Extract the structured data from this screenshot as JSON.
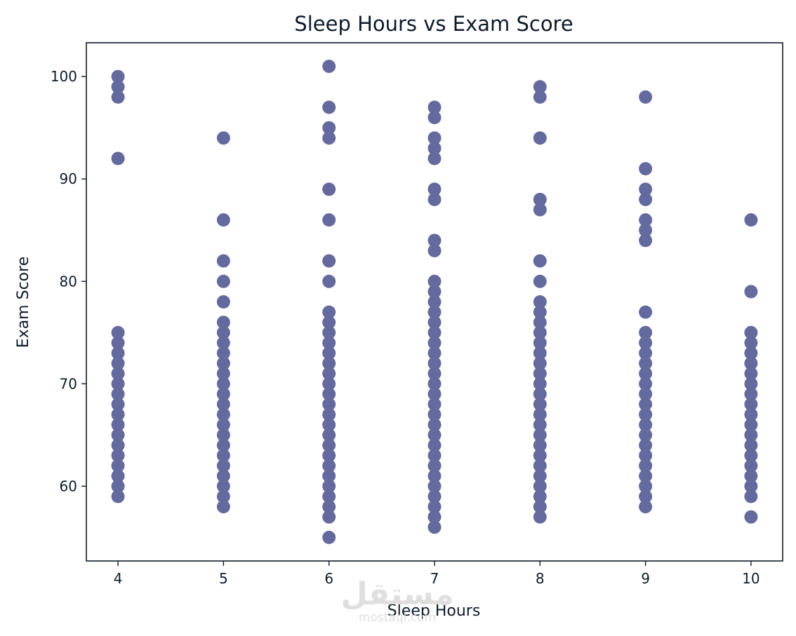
{
  "chart_data": {
    "type": "scatter",
    "title": "Sleep Hours vs Exam Score",
    "xlabel": "Sleep Hours",
    "ylabel": "Exam Score",
    "xlim": [
      3.7,
      10.3
    ],
    "ylim": [
      52.7,
      103.3
    ],
    "xticks": [
      4,
      5,
      6,
      7,
      8,
      9,
      10
    ],
    "yticks": [
      60,
      70,
      80,
      90,
      100
    ],
    "grid": false,
    "marker_color": "#656a9e",
    "axis_color": "#0d1b2a",
    "series": [
      {
        "points": [
          [
            4,
            100
          ],
          [
            4,
            99
          ],
          [
            4,
            98
          ],
          [
            4,
            92
          ],
          [
            4,
            75
          ],
          [
            4,
            74
          ],
          [
            4,
            73
          ],
          [
            4,
            72
          ],
          [
            4,
            71
          ],
          [
            4,
            70
          ],
          [
            4,
            69
          ],
          [
            4,
            68
          ],
          [
            4,
            67
          ],
          [
            4,
            66
          ],
          [
            4,
            65
          ],
          [
            4,
            64
          ],
          [
            4,
            63
          ],
          [
            4,
            62
          ],
          [
            4,
            61
          ],
          [
            4,
            60
          ],
          [
            4,
            59
          ],
          [
            5,
            94
          ],
          [
            5,
            86
          ],
          [
            5,
            82
          ],
          [
            5,
            80
          ],
          [
            5,
            78
          ],
          [
            5,
            76
          ],
          [
            5,
            75
          ],
          [
            5,
            74
          ],
          [
            5,
            73
          ],
          [
            5,
            72
          ],
          [
            5,
            71
          ],
          [
            5,
            70
          ],
          [
            5,
            69
          ],
          [
            5,
            68
          ],
          [
            5,
            67
          ],
          [
            5,
            66
          ],
          [
            5,
            65
          ],
          [
            5,
            64
          ],
          [
            5,
            63
          ],
          [
            5,
            62
          ],
          [
            5,
            61
          ],
          [
            5,
            60
          ],
          [
            5,
            59
          ],
          [
            5,
            58
          ],
          [
            6,
            101
          ],
          [
            6,
            97
          ],
          [
            6,
            95
          ],
          [
            6,
            94
          ],
          [
            6,
            89
          ],
          [
            6,
            86
          ],
          [
            6,
            82
          ],
          [
            6,
            80
          ],
          [
            6,
            77
          ],
          [
            6,
            76
          ],
          [
            6,
            75
          ],
          [
            6,
            74
          ],
          [
            6,
            73
          ],
          [
            6,
            72
          ],
          [
            6,
            71
          ],
          [
            6,
            70
          ],
          [
            6,
            69
          ],
          [
            6,
            68
          ],
          [
            6,
            67
          ],
          [
            6,
            66
          ],
          [
            6,
            65
          ],
          [
            6,
            64
          ],
          [
            6,
            63
          ],
          [
            6,
            62
          ],
          [
            6,
            61
          ],
          [
            6,
            60
          ],
          [
            6,
            59
          ],
          [
            6,
            58
          ],
          [
            6,
            57
          ],
          [
            6,
            55
          ],
          [
            7,
            97
          ],
          [
            7,
            96
          ],
          [
            7,
            94
          ],
          [
            7,
            93
          ],
          [
            7,
            92
          ],
          [
            7,
            89
          ],
          [
            7,
            88
          ],
          [
            7,
            84
          ],
          [
            7,
            83
          ],
          [
            7,
            80
          ],
          [
            7,
            79
          ],
          [
            7,
            78
          ],
          [
            7,
            77
          ],
          [
            7,
            76
          ],
          [
            7,
            75
          ],
          [
            7,
            74
          ],
          [
            7,
            73
          ],
          [
            7,
            72
          ],
          [
            7,
            71
          ],
          [
            7,
            70
          ],
          [
            7,
            69
          ],
          [
            7,
            68
          ],
          [
            7,
            67
          ],
          [
            7,
            66
          ],
          [
            7,
            65
          ],
          [
            7,
            64
          ],
          [
            7,
            63
          ],
          [
            7,
            62
          ],
          [
            7,
            61
          ],
          [
            7,
            60
          ],
          [
            7,
            59
          ],
          [
            7,
            58
          ],
          [
            7,
            57
          ],
          [
            7,
            56
          ],
          [
            8,
            99
          ],
          [
            8,
            98
          ],
          [
            8,
            94
          ],
          [
            8,
            88
          ],
          [
            8,
            87
          ],
          [
            8,
            82
          ],
          [
            8,
            80
          ],
          [
            8,
            78
          ],
          [
            8,
            77
          ],
          [
            8,
            76
          ],
          [
            8,
            75
          ],
          [
            8,
            74
          ],
          [
            8,
            73
          ],
          [
            8,
            72
          ],
          [
            8,
            71
          ],
          [
            8,
            70
          ],
          [
            8,
            69
          ],
          [
            8,
            68
          ],
          [
            8,
            67
          ],
          [
            8,
            66
          ],
          [
            8,
            65
          ],
          [
            8,
            64
          ],
          [
            8,
            63
          ],
          [
            8,
            62
          ],
          [
            8,
            61
          ],
          [
            8,
            60
          ],
          [
            8,
            59
          ],
          [
            8,
            58
          ],
          [
            8,
            57
          ],
          [
            9,
            98
          ],
          [
            9,
            91
          ],
          [
            9,
            89
          ],
          [
            9,
            88
          ],
          [
            9,
            86
          ],
          [
            9,
            85
          ],
          [
            9,
            84
          ],
          [
            9,
            77
          ],
          [
            9,
            75
          ],
          [
            9,
            74
          ],
          [
            9,
            73
          ],
          [
            9,
            72
          ],
          [
            9,
            71
          ],
          [
            9,
            70
          ],
          [
            9,
            69
          ],
          [
            9,
            68
          ],
          [
            9,
            67
          ],
          [
            9,
            66
          ],
          [
            9,
            65
          ],
          [
            9,
            64
          ],
          [
            9,
            63
          ],
          [
            9,
            62
          ],
          [
            9,
            61
          ],
          [
            9,
            60
          ],
          [
            9,
            59
          ],
          [
            9,
            58
          ],
          [
            10,
            86
          ],
          [
            10,
            79
          ],
          [
            10,
            75
          ],
          [
            10,
            74
          ],
          [
            10,
            73
          ],
          [
            10,
            72
          ],
          [
            10,
            71
          ],
          [
            10,
            70
          ],
          [
            10,
            69
          ],
          [
            10,
            68
          ],
          [
            10,
            67
          ],
          [
            10,
            66
          ],
          [
            10,
            65
          ],
          [
            10,
            64
          ],
          [
            10,
            63
          ],
          [
            10,
            62
          ],
          [
            10,
            61
          ],
          [
            10,
            60
          ],
          [
            10,
            59
          ],
          [
            10,
            57
          ]
        ]
      }
    ]
  },
  "watermark": {
    "arabic": "مستقل",
    "latin": "mostaql.com"
  }
}
